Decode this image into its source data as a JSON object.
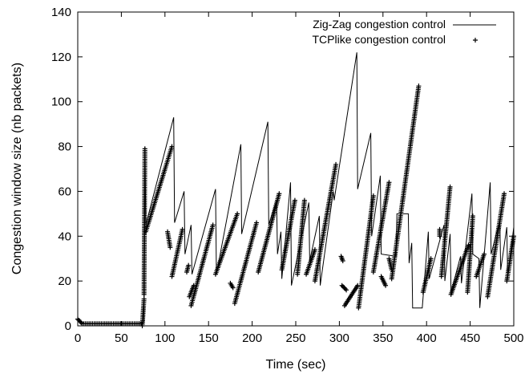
{
  "chart_data": {
    "type": "line",
    "title": "",
    "xlabel": "Time (sec)",
    "ylabel": "Congestion window size (nb packets)",
    "xlim": [
      0,
      500
    ],
    "ylim": [
      0,
      140
    ],
    "xticks": [
      0,
      50,
      100,
      150,
      200,
      250,
      300,
      350,
      400,
      450,
      500
    ],
    "yticks": [
      0,
      20,
      40,
      60,
      80,
      100,
      120,
      140
    ],
    "grid": false,
    "legend_position": "top-right",
    "series": [
      {
        "name": "Zig-Zag congestion control",
        "style": "line",
        "color": "#000000",
        "points": [
          [
            0,
            3
          ],
          [
            2,
            2
          ],
          [
            5,
            1
          ],
          [
            74,
            1
          ],
          [
            76,
            2
          ],
          [
            77,
            80
          ],
          [
            78,
            45
          ],
          [
            110,
            93
          ],
          [
            111,
            46
          ],
          [
            122,
            60
          ],
          [
            123,
            32
          ],
          [
            130,
            45
          ],
          [
            131,
            23
          ],
          [
            158,
            61
          ],
          [
            159,
            23
          ],
          [
            187,
            81
          ],
          [
            188,
            41
          ],
          [
            218,
            91
          ],
          [
            219,
            45
          ],
          [
            228,
            56
          ],
          [
            229,
            32
          ],
          [
            233,
            42
          ],
          [
            234,
            21
          ],
          [
            244,
            64
          ],
          [
            245,
            18
          ],
          [
            265,
            55
          ],
          [
            266,
            29
          ],
          [
            277,
            49
          ],
          [
            278,
            18
          ],
          [
            293,
            60
          ],
          [
            294,
            56
          ],
          [
            320,
            122
          ],
          [
            321,
            61
          ],
          [
            336,
            86
          ],
          [
            337,
            40
          ],
          [
            347,
            67
          ],
          [
            348,
            32
          ],
          [
            365,
            31
          ],
          [
            366,
            50
          ],
          [
            379,
            50
          ],
          [
            380,
            28
          ],
          [
            383,
            37
          ],
          [
            384,
            8
          ],
          [
            395,
            8
          ],
          [
            402,
            42
          ],
          [
            403,
            21
          ],
          [
            420,
            45
          ],
          [
            421,
            20
          ],
          [
            427,
            41
          ],
          [
            428,
            15
          ],
          [
            439,
            31
          ],
          [
            440,
            19
          ],
          [
            452,
            59
          ],
          [
            453,
            32
          ],
          [
            460,
            30
          ],
          [
            461,
            8
          ],
          [
            473,
            64
          ],
          [
            474,
            32
          ],
          [
            484,
            47
          ],
          [
            485,
            25
          ],
          [
            492,
            44
          ],
          [
            493,
            22
          ],
          [
            500,
            44
          ]
        ]
      },
      {
        "name": "TCPlike congestion control",
        "style": "points",
        "color": "#000000",
        "segments": [
          [
            [
              0,
              3
            ],
            [
              5,
              1
            ]
          ],
          [
            [
              5,
              1
            ],
            [
              73,
              1
            ]
          ],
          [
            [
              74,
              0
            ],
            [
              76,
              12
            ]
          ],
          [
            [
              76,
              14
            ],
            [
              77,
              79
            ]
          ],
          [
            [
              78,
              42
            ],
            [
              108,
              80
            ]
          ],
          [
            [
              103,
              42
            ],
            [
              106,
              35
            ]
          ],
          [
            [
              108,
              22
            ],
            [
              120,
              43
            ]
          ],
          [
            [
              125,
              24
            ],
            [
              127,
              27
            ]
          ],
          [
            [
              128,
              13
            ],
            [
              133,
              18
            ]
          ],
          [
            [
              130,
              9
            ],
            [
              155,
              45
            ]
          ],
          [
            [
              158,
              23
            ],
            [
              183,
              50
            ]
          ],
          [
            [
              175,
              19
            ],
            [
              178,
              17
            ]
          ],
          [
            [
              180,
              10
            ],
            [
              205,
              46
            ]
          ],
          [
            [
              207,
              24
            ],
            [
              231,
              59
            ]
          ],
          [
            [
              234,
              25
            ],
            [
              249,
              56
            ]
          ],
          [
            [
              252,
              23
            ],
            [
              260,
              56
            ]
          ],
          [
            [
              262,
              23
            ],
            [
              272,
              34
            ]
          ],
          [
            [
              272,
              20
            ],
            [
              296,
              72
            ]
          ],
          [
            [
              302,
              31
            ],
            [
              304,
              29
            ]
          ],
          [
            [
              303,
              18
            ],
            [
              308,
              16
            ]
          ],
          [
            [
              306,
              9
            ],
            [
              321,
              18
            ]
          ],
          [
            [
              322,
              8
            ],
            [
              339,
              58
            ]
          ],
          [
            [
              339,
              24
            ],
            [
              357,
              64
            ]
          ],
          [
            [
              348,
              22
            ],
            [
              353,
              18
            ]
          ],
          [
            [
              357,
              30
            ],
            [
              360,
              25
            ]
          ],
          [
            [
              360,
              21
            ],
            [
              391,
              107
            ]
          ],
          [
            [
              396,
              15
            ],
            [
              405,
              30
            ]
          ],
          [
            [
              415,
              43
            ],
            [
              415,
              40
            ]
          ],
          [
            [
              417,
              22
            ],
            [
              427,
              62
            ]
          ],
          [
            [
              428,
              14
            ],
            [
              448,
              36
            ]
          ],
          [
            [
              447,
              15
            ],
            [
              453,
              49
            ]
          ],
          [
            [
              457,
              22
            ],
            [
              466,
              32
            ]
          ],
          [
            [
              470,
              13
            ],
            [
              489,
              59
            ]
          ],
          [
            [
              492,
              20
            ],
            [
              500,
              40
            ]
          ]
        ]
      }
    ]
  }
}
